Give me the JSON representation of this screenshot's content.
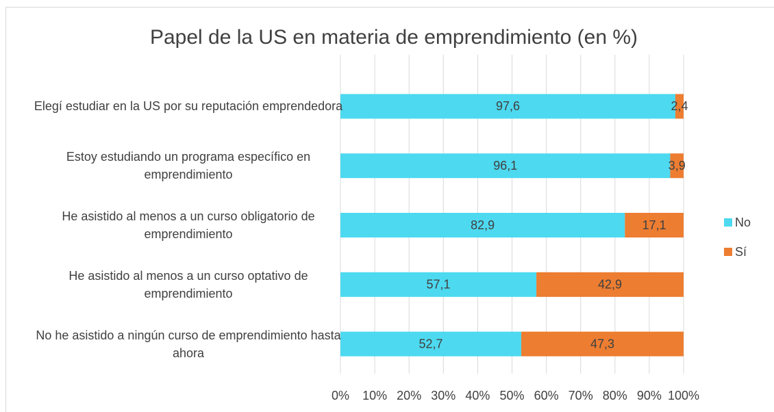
{
  "chart_data": {
    "type": "stacked-bar-horizontal",
    "title": "Papel de la US en materia de emprendimiento (en %)",
    "categories": [
      "Elegí estudiar en la US por su reputación emprendedora",
      "Estoy estudiando un programa específico en emprendimiento",
      "He asistido al menos a un curso obligatorio de emprendimiento",
      "He asistido al menos a un curso optativo de emprendimiento",
      "No he asistido a ningún curso de emprendimiento hasta ahora"
    ],
    "series": [
      {
        "name": "No",
        "color": "#4dd9f0",
        "values": [
          97.6,
          96.1,
          82.9,
          57.1,
          52.7
        ],
        "value_labels": [
          "97,6",
          "96,1",
          "82,9",
          "57,1",
          "52,7"
        ]
      },
      {
        "name": "Sí",
        "color": "#ed7d31",
        "values": [
          2.4,
          3.9,
          17.1,
          42.9,
          47.3
        ],
        "value_labels": [
          "2,4",
          "3,9",
          "17,1",
          "42,9",
          "47,3"
        ]
      }
    ],
    "xlim": [
      0,
      100
    ],
    "xticks": [
      {
        "value": 0,
        "label": "0%"
      },
      {
        "value": 10,
        "label": "10%"
      },
      {
        "value": 20,
        "label": "20%"
      },
      {
        "value": 30,
        "label": "30%"
      },
      {
        "value": 40,
        "label": "40%"
      },
      {
        "value": 50,
        "label": "50%"
      },
      {
        "value": 60,
        "label": "60%"
      },
      {
        "value": 70,
        "label": "70%"
      },
      {
        "value": 80,
        "label": "80%"
      },
      {
        "value": 90,
        "label": "90%"
      },
      {
        "value": 100,
        "label": "100%"
      }
    ],
    "grid": true,
    "legend": "right"
  }
}
